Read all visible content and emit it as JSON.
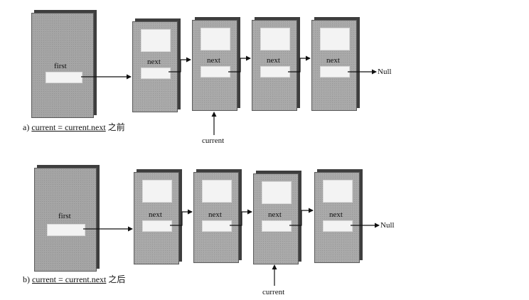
{
  "diagram_a": {
    "first_label": "first",
    "node_labels": [
      "next",
      "next",
      "next",
      "next"
    ],
    "null_label": "Null",
    "pointer_label": "current",
    "pointer_node_index": 1,
    "caption_prefix": "a) ",
    "caption_code": "current = current.next",
    "caption_suffix": " 之前"
  },
  "diagram_b": {
    "first_label": "first",
    "node_labels": [
      "next",
      "next",
      "next",
      "next"
    ],
    "null_label": "Null",
    "pointer_label": "current",
    "pointer_node_index": 2,
    "caption_prefix": "b) ",
    "caption_code": "current = current.next",
    "caption_suffix": " 之后"
  },
  "colors": {
    "box_fill": "#a9a9a9",
    "box_shadow": "#3e3e3e",
    "slot_fill": "#f3f3f3",
    "arrow": "#111111"
  }
}
